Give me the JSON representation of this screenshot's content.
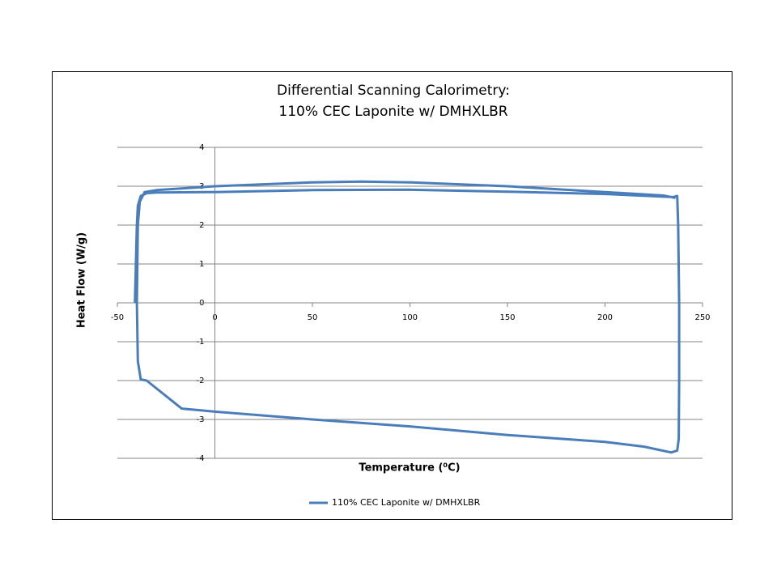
{
  "chart_data": {
    "type": "line",
    "title": [
      "Differential Scanning Calorimetry:",
      "110% CEC Laponite  w/ DMHXLBR"
    ],
    "x_label": "Temperature (⁰C)",
    "y_label": "Heat Flow (W/g)",
    "x": [
      -41,
      -40.5,
      -40,
      -39.5,
      -38,
      -35,
      -30,
      0,
      50,
      100,
      150,
      200,
      235,
      237,
      237.5,
      238,
      238,
      237.8,
      237,
      234,
      220,
      200,
      150,
      100,
      50,
      0,
      -17,
      -35,
      -38,
      -39.5,
      -40,
      -39.5,
      -38.5,
      -36,
      -30,
      0,
      50,
      75,
      100,
      150,
      200,
      230,
      236
    ],
    "series": [
      {
        "name": "110% CEC Laponite w/ DMHXLBR",
        "color": "#4a7ebb",
        "values": [
          0,
          1,
          2,
          2.5,
          2.75,
          2.82,
          2.84,
          2.85,
          2.9,
          2.91,
          2.86,
          2.8,
          2.72,
          2.75,
          2,
          0,
          -2,
          -3.5,
          -3.8,
          -3.85,
          -3.7,
          -3.58,
          -3.4,
          -3.18,
          -3.0,
          -2.8,
          -2.72,
          -2.0,
          -1.97,
          -1.5,
          0,
          2,
          2.6,
          2.85,
          2.9,
          3.0,
          3.1,
          3.12,
          3.1,
          3.0,
          2.85,
          2.76,
          2.7
        ]
      }
    ],
    "xlim": [
      -50,
      250
    ],
    "xticks": [
      -50,
      0,
      50,
      100,
      150,
      200,
      250
    ],
    "ylim": [
      -4,
      4
    ],
    "yticks": [
      -4,
      -3,
      -2,
      -1,
      0,
      1,
      2,
      3,
      4
    ],
    "grid": true,
    "legend": "bottom"
  }
}
